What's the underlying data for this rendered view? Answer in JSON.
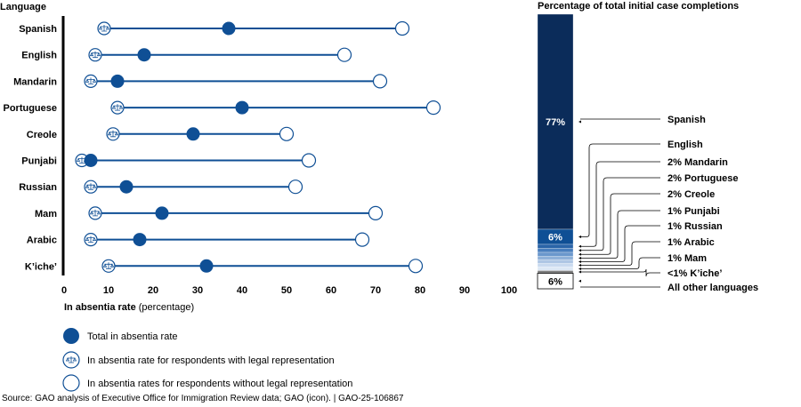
{
  "chart_data": [
    {
      "type": "dot-range",
      "title": "Language",
      "xlabel": "In absentia rate",
      "xlabel_suffix": "(percentage)",
      "xlim": [
        0,
        100
      ],
      "xticks": [
        0,
        10,
        20,
        30,
        40,
        50,
        60,
        70,
        80,
        90,
        100
      ],
      "categories": [
        "Spanish",
        "English",
        "Mandarin",
        "Portuguese",
        "Creole",
        "Punjabi",
        "Russian",
        "Mam",
        "Arabic",
        "K’iche’"
      ],
      "series": [
        {
          "name": "Total in absentia rate",
          "values": [
            37,
            18,
            12,
            40,
            29,
            6,
            14,
            22,
            17,
            32
          ]
        },
        {
          "name": "In absentia rate for respondents with legal representation",
          "values": [
            9,
            7,
            6,
            12,
            11,
            4,
            6,
            7,
            6,
            10
          ]
        },
        {
          "name": "In absentia rates for respondents without legal representation",
          "values": [
            76,
            63,
            71,
            83,
            50,
            55,
            52,
            70,
            67,
            79
          ]
        }
      ]
    },
    {
      "type": "stacked-bar",
      "title": "Percentage of total initial case completions",
      "segments": [
        {
          "label": "Spanish",
          "value": 77,
          "value_label": "77%",
          "color": "#0b2c5a"
        },
        {
          "label": "English",
          "value": 6,
          "value_label": "6%",
          "color": "#0f4f95"
        },
        {
          "label": "2% Mandarin",
          "value": 2,
          "color": "#2a64a8"
        },
        {
          "label": "2% Portuguese",
          "value": 2,
          "color": "#4a7fbe"
        },
        {
          "label": "2% Creole",
          "value": 2,
          "color": "#6b98cc"
        },
        {
          "label": "1% Punjabi",
          "value": 1,
          "color": "#8fb1d9"
        },
        {
          "label": "1% Russian",
          "value": 1,
          "color": "#aec6e4"
        },
        {
          "label": "1% Arabic",
          "value": 1,
          "color": "#c9daef"
        },
        {
          "label": "1% Mam",
          "value": 1,
          "color": "#dde8f5"
        },
        {
          "label": "<1% K’iche’",
          "value": 0.5,
          "color": "#7f7f7f"
        },
        {
          "label": "All other languages",
          "value": 6,
          "value_label": "6%",
          "color": "#ffffff"
        }
      ]
    }
  ],
  "source": "Source: GAO analysis of Executive Office for Immigration Review data; GAO (icon).  |  GAO-25-106867",
  "colors": {
    "accent": "#0f4f95",
    "dark": "#0b2c5a"
  }
}
